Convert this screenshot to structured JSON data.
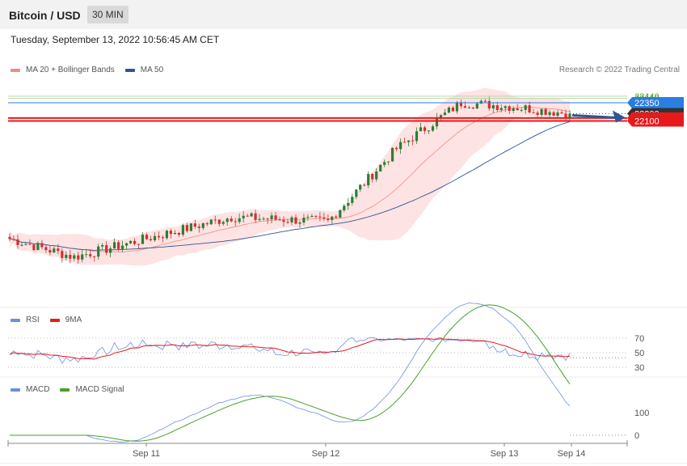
{
  "header": {
    "title": "Bitcoin / USD",
    "timeframe": "30 MIN"
  },
  "timestamp": "Tuesday, September 13, 2022 10:56:45 AM CET",
  "credit": "Research © 2022 Trading Central",
  "legend": {
    "main": [
      {
        "label": "MA 20 + Bollinger Bands",
        "color": "#f28b82"
      },
      {
        "label": "MA 50",
        "color": "#2f5597"
      }
    ],
    "rsi": [
      {
        "label": "RSI",
        "color": "#6b8ee0"
      },
      {
        "label": "9MA",
        "color": "#e8191b"
      }
    ],
    "macd": [
      {
        "label": "MACD",
        "color": "#6b8ee0"
      },
      {
        "label": "MACD Signal",
        "color": "#4aa02c"
      }
    ]
  },
  "colors": {
    "up": "#2e7d32",
    "down": "#d32f2f",
    "support": "#e8191b",
    "resistance": "#2a7de1",
    "pivot": "#333333",
    "target": "#4aa02c",
    "arrow": "#2f5597"
  },
  "chart_data": [
    {
      "type": "candlestick",
      "title": "Bitcoin / USD",
      "price_range": [
        19650,
        22650
      ],
      "x_ticks": [
        "Sep 11",
        "Sep 12",
        "Sep 13",
        "Sep 14"
      ],
      "levels": [
        {
          "label": "22440",
          "value": 22440,
          "role": "target"
        },
        {
          "label": "22410",
          "value": 22410,
          "role": "target"
        },
        {
          "label": "22350",
          "value": 22350,
          "role": "resistance"
        },
        {
          "label": "22200",
          "value": 22200,
          "role": "pivot"
        },
        {
          "label": "22140",
          "value": 22140,
          "role": "support"
        },
        {
          "label": "22100",
          "value": 22100,
          "role": "support"
        }
      ],
      "key_points": [
        {
          "x": "Sep 10 start",
          "close": 20480
        },
        {
          "x": "Sep 11 00:00",
          "close": 20230
        },
        {
          "x": "Sep 11 18:00",
          "close": 20780
        },
        {
          "x": "Sep 12 00:00",
          "close": 20720
        },
        {
          "x": "Sep 12 08:00",
          "close": 21720
        },
        {
          "x": "Sep 12 18:00",
          "close": 22350
        },
        {
          "x": "Sep 13 00:00",
          "close": 22300
        },
        {
          "x": "Sep 13 10:00",
          "close": 22200
        }
      ],
      "series": [
        {
          "name": "MA 20 + Bollinger Bands"
        },
        {
          "name": "MA 50"
        }
      ]
    },
    {
      "type": "line",
      "series": [
        {
          "name": "RSI"
        },
        {
          "name": "9MA"
        }
      ],
      "y_ticks": [
        70,
        50,
        30
      ]
    },
    {
      "type": "line",
      "series": [
        {
          "name": "MACD"
        },
        {
          "name": "MACD Signal"
        }
      ],
      "y_ticks": [
        100,
        0
      ]
    }
  ]
}
